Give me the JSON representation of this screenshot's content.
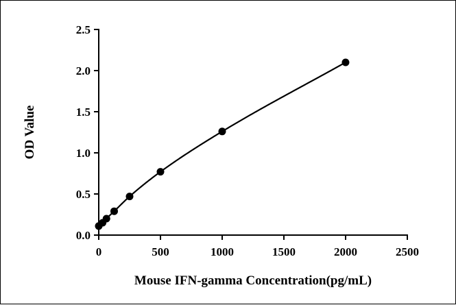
{
  "chart_data": {
    "type": "scatter",
    "title": "",
    "xlabel": "Mouse IFN-gamma Concentration(pg/mL)",
    "ylabel": "OD Value",
    "xlim": [
      0,
      2500
    ],
    "ylim": [
      0,
      2.5
    ],
    "x_ticks": [
      0,
      500,
      1000,
      1500,
      2000,
      2500
    ],
    "x_tick_labels": [
      "0",
      "500",
      "1000",
      "1500",
      "2000",
      "2500"
    ],
    "y_ticks": [
      0,
      0.5,
      1.0,
      1.5,
      2.0,
      2.5
    ],
    "y_tick_labels": [
      "0.0",
      "0.5",
      "1.0",
      "1.5",
      "2.0",
      "2.5"
    ],
    "grid": false,
    "legend": "none",
    "series": [
      {
        "x": [
          0,
          31.25,
          62.5,
          125,
          250,
          500,
          1000,
          2000
        ],
        "y": [
          0.11,
          0.15,
          0.2,
          0.29,
          0.47,
          0.77,
          1.26,
          2.1
        ],
        "fit_curve": true
      }
    ],
    "colors": {
      "marker": "#000000",
      "curve": "#000000",
      "axis": "#000000"
    }
  }
}
